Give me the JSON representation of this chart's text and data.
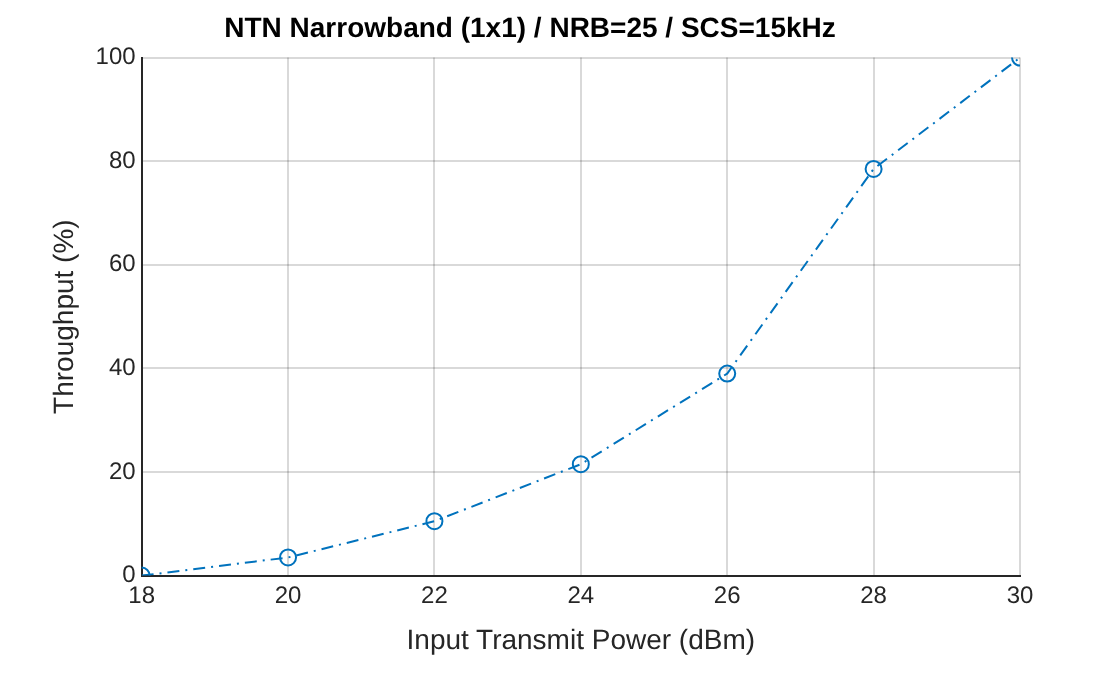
{
  "chart_data": {
    "type": "line",
    "title": "NTN Narrowband (1x1) / NRB=25 / SCS=15kHz",
    "xlabel": "Input Transmit Power (dBm)",
    "ylabel": "Throughput (%)",
    "x": [
      18,
      20,
      22,
      24,
      26,
      28,
      30
    ],
    "series": [
      {
        "color": "#0072bd",
        "values": [
          0,
          3.5,
          10.5,
          21.5,
          39,
          78.5,
          100
        ]
      }
    ],
    "xlim": [
      18,
      30
    ],
    "xticks": [
      18,
      20,
      22,
      24,
      26,
      28,
      30
    ],
    "ylim": [
      0,
      100
    ],
    "yticks": [
      0,
      20,
      40,
      60,
      80,
      100
    ],
    "grid": true,
    "legend": false,
    "marker": "circle",
    "line_style": "dashed"
  }
}
